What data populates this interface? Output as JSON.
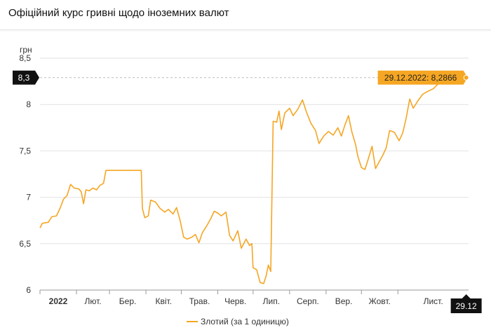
{
  "header": {
    "title": "Офіційний курс гривні щодо іноземних валют"
  },
  "chart_data": {
    "type": "line",
    "title": "Офіційний курс гривні щодо іноземних валют",
    "ylabel": "грн",
    "ylim": [
      6,
      8.5
    ],
    "y_ticks": [
      "6",
      "6,5",
      "7",
      "7,5",
      "8",
      "8,5"
    ],
    "y_tick_values": [
      6,
      6.5,
      7,
      7.5,
      8,
      8.5
    ],
    "xlim": [
      "2022-01-01",
      "2022-12-31"
    ],
    "x_ticks": [
      {
        "label": "2022",
        "date": "2022-01-01",
        "bold": true
      },
      {
        "label": "Лют.",
        "date": "2022-02-01",
        "bold": false
      },
      {
        "label": "Бер.",
        "date": "2022-03-01",
        "bold": false
      },
      {
        "label": "Квіт.",
        "date": "2022-04-01",
        "bold": false
      },
      {
        "label": "Трав.",
        "date": "2022-05-01",
        "bold": false
      },
      {
        "label": "Черв.",
        "date": "2022-06-01",
        "bold": false
      },
      {
        "label": "Лип.",
        "date": "2022-07-01",
        "bold": false
      },
      {
        "label": "Серп.",
        "date": "2022-08-01",
        "bold": false
      },
      {
        "label": "Вер.",
        "date": "2022-09-01",
        "bold": false
      },
      {
        "label": "Жовт.",
        "date": "2022-10-01",
        "bold": false
      },
      {
        "label": "Лист.",
        "date": "2022-11-01",
        "bold": false
      }
    ],
    "crosshair": {
      "y_label": "8,3",
      "y_value": 8.29,
      "x_label": "29.12",
      "x_date": "2022-12-29"
    },
    "tooltip": "29.12.2022: 8,2866",
    "grid": "horizontal",
    "legend_position": "bottom",
    "series": [
      {
        "name": "Злотий (за 1 одиницю)",
        "color": "#f5a623",
        "points": [
          [
            "2022-01-01",
            6.67
          ],
          [
            "2022-01-03",
            6.72
          ],
          [
            "2022-01-08",
            6.73
          ],
          [
            "2022-01-11",
            6.79
          ],
          [
            "2022-01-15",
            6.8
          ],
          [
            "2022-01-18",
            6.88
          ],
          [
            "2022-01-21",
            6.98
          ],
          [
            "2022-01-24",
            7.02
          ],
          [
            "2022-01-27",
            7.14
          ],
          [
            "2022-01-30",
            7.1
          ],
          [
            "2022-02-03",
            7.09
          ],
          [
            "2022-02-05",
            7.06
          ],
          [
            "2022-02-07",
            6.93
          ],
          [
            "2022-02-09",
            7.08
          ],
          [
            "2022-02-12",
            7.07
          ],
          [
            "2022-02-15",
            7.1
          ],
          [
            "2022-02-18",
            7.08
          ],
          [
            "2022-02-21",
            7.13
          ],
          [
            "2022-02-24",
            7.15
          ],
          [
            "2022-02-26",
            7.29
          ],
          [
            "2022-03-10",
            7.29
          ],
          [
            "2022-03-20",
            7.29
          ],
          [
            "2022-03-28",
            7.29
          ],
          [
            "2022-03-29",
            6.88
          ],
          [
            "2022-03-31",
            6.78
          ],
          [
            "2022-04-03",
            6.8
          ],
          [
            "2022-04-05",
            6.97
          ],
          [
            "2022-04-09",
            6.95
          ],
          [
            "2022-04-13",
            6.88
          ],
          [
            "2022-04-17",
            6.84
          ],
          [
            "2022-04-20",
            6.87
          ],
          [
            "2022-04-24",
            6.82
          ],
          [
            "2022-04-27",
            6.89
          ],
          [
            "2022-04-30",
            6.75
          ],
          [
            "2022-05-03",
            6.57
          ],
          [
            "2022-05-06",
            6.55
          ],
          [
            "2022-05-10",
            6.57
          ],
          [
            "2022-05-13",
            6.6
          ],
          [
            "2022-05-16",
            6.51
          ],
          [
            "2022-05-19",
            6.62
          ],
          [
            "2022-05-23",
            6.7
          ],
          [
            "2022-05-26",
            6.77
          ],
          [
            "2022-05-29",
            6.85
          ],
          [
            "2022-06-01",
            6.83
          ],
          [
            "2022-06-04",
            6.8
          ],
          [
            "2022-06-08",
            6.84
          ],
          [
            "2022-06-11",
            6.59
          ],
          [
            "2022-06-14",
            6.53
          ],
          [
            "2022-06-18",
            6.64
          ],
          [
            "2022-06-21",
            6.45
          ],
          [
            "2022-06-25",
            6.55
          ],
          [
            "2022-06-28",
            6.48
          ],
          [
            "2022-06-30",
            6.5
          ],
          [
            "2022-07-01",
            6.24
          ],
          [
            "2022-07-04",
            6.22
          ],
          [
            "2022-07-07",
            6.08
          ],
          [
            "2022-07-10",
            6.07
          ],
          [
            "2022-07-12",
            6.15
          ],
          [
            "2022-07-14",
            6.27
          ],
          [
            "2022-07-16",
            6.2
          ],
          [
            "2022-07-18",
            7.82
          ],
          [
            "2022-07-21",
            7.81
          ],
          [
            "2022-07-23",
            7.93
          ],
          [
            "2022-07-25",
            7.73
          ],
          [
            "2022-07-28",
            7.91
          ],
          [
            "2022-08-01",
            7.96
          ],
          [
            "2022-08-04",
            7.88
          ],
          [
            "2022-08-08",
            7.95
          ],
          [
            "2022-08-12",
            8.05
          ],
          [
            "2022-08-15",
            7.93
          ],
          [
            "2022-08-19",
            7.8
          ],
          [
            "2022-08-23",
            7.72
          ],
          [
            "2022-08-26",
            7.58
          ],
          [
            "2022-08-30",
            7.66
          ],
          [
            "2022-09-03",
            7.71
          ],
          [
            "2022-09-07",
            7.67
          ],
          [
            "2022-09-11",
            7.75
          ],
          [
            "2022-09-14",
            7.66
          ],
          [
            "2022-09-17",
            7.78
          ],
          [
            "2022-09-20",
            7.88
          ],
          [
            "2022-09-23",
            7.7
          ],
          [
            "2022-09-26",
            7.57
          ],
          [
            "2022-09-28",
            7.44
          ],
          [
            "2022-10-01",
            7.32
          ],
          [
            "2022-10-04",
            7.3
          ],
          [
            "2022-10-07",
            7.42
          ],
          [
            "2022-10-10",
            7.55
          ],
          [
            "2022-10-13",
            7.31
          ],
          [
            "2022-10-16",
            7.38
          ],
          [
            "2022-10-19",
            7.45
          ],
          [
            "2022-10-22",
            7.53
          ],
          [
            "2022-10-25",
            7.72
          ],
          [
            "2022-10-29",
            7.7
          ],
          [
            "2022-11-02",
            7.61
          ],
          [
            "2022-11-05",
            7.69
          ],
          [
            "2022-11-08",
            7.85
          ],
          [
            "2022-11-11",
            8.06
          ],
          [
            "2022-11-14",
            7.96
          ],
          [
            "2022-11-18",
            8.04
          ],
          [
            "2022-11-22",
            8.11
          ],
          [
            "2022-11-26",
            8.14
          ],
          [
            "2022-12-01",
            8.17
          ],
          [
            "2022-12-05",
            8.22
          ],
          [
            "2022-12-10",
            8.24
          ],
          [
            "2022-12-15",
            8.26
          ],
          [
            "2022-12-20",
            8.26
          ],
          [
            "2022-12-25",
            8.28
          ],
          [
            "2022-12-29",
            8.29
          ]
        ]
      }
    ]
  }
}
